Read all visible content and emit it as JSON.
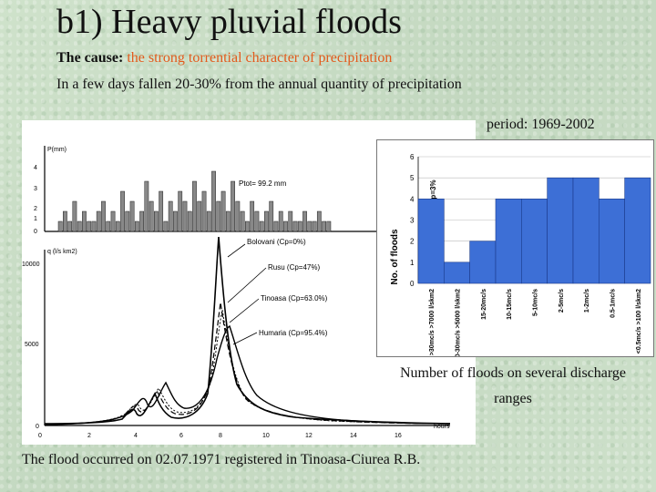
{
  "slide": {
    "title": "b1) Heavy pluvial floods",
    "cause_label": "The cause:",
    "cause_text": "the strong torrential character of precipitation",
    "line2": "In a few days fallen 20-30% from the annual quantity of precipitation",
    "period": "period: 1969-2002",
    "right_caption": "Number of floods on several discharge ranges",
    "bottom_caption": "The flood occurred on 02.07.1971 registered in Tinoasa-Ciurea R.B.",
    "colors": {
      "cause_accent": "#e25a1c",
      "background": "#c9dcc6"
    }
  },
  "left_figure": {
    "p_axis_label": "P(mm)",
    "p_ticks": [
      "4",
      "3",
      "2",
      "1",
      "0"
    ],
    "p_total_label": "Ptot= 99.2 mm",
    "q_axis_label": "q (l/s km2)",
    "q_ticks": [
      "10000",
      "5000",
      "0"
    ],
    "x_ticks": [
      "0",
      "2",
      "4",
      "6",
      "8",
      "10",
      "12",
      "14",
      "16"
    ],
    "x_unit": "hours",
    "curve_labels": [
      "Bolovani (Cp=0%)",
      "Rusu (Cp=47%)",
      "Tinoasa (Cp=63.0%)",
      "Humaria (Cp=95.4%)"
    ]
  },
  "chart_data": {
    "type": "bar",
    "ylabel": "No. of floods",
    "ylim": [
      0,
      6
    ],
    "y_ticks": [
      "0",
      "1",
      "2",
      "3",
      "4",
      "5",
      "6"
    ],
    "annotation": "p=3%",
    "categories": [
      ">30mc/s >7000 l/skm2",
      "20-30mc/s >5000 l/skm2",
      "15-20mc/s",
      "10-15mc/s",
      "5-10mc/s",
      "2-5mc/s",
      "1-2mc/s",
      "0.5-1mc/s",
      "<0.5mc/s >100 l/skm2"
    ],
    "values": [
      4,
      1,
      2,
      4,
      4,
      5,
      5,
      4,
      5
    ],
    "grid": true
  }
}
